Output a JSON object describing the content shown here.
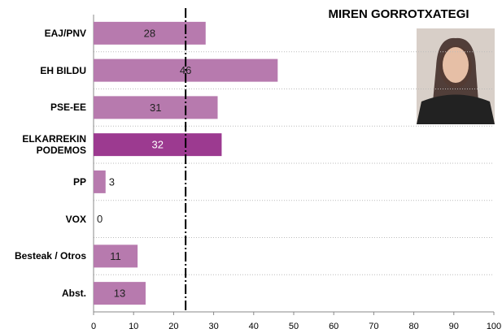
{
  "chart_data": {
    "type": "bar",
    "orientation": "horizontal",
    "title": "MIREN GORROTXATEGI",
    "categories": [
      "EAJ/PNV",
      "EH BILDU",
      "PSE-EE",
      "ELKARREKIN PODEMOS",
      "PP",
      "VOX",
      "Besteak / Otros",
      "Abst."
    ],
    "values": [
      28,
      46,
      31,
      32,
      3,
      0,
      11,
      13
    ],
    "colors": [
      "#b77aae",
      "#b77aae",
      "#b77aae",
      "#9c3a90",
      "#b77aae",
      "#b77aae",
      "#b77aae",
      "#b77aae"
    ],
    "xlim": [
      0,
      100
    ],
    "xticks": [
      0,
      10,
      20,
      30,
      40,
      50,
      60,
      70,
      80,
      90,
      100
    ],
    "reference_line": 23,
    "grid": true
  }
}
